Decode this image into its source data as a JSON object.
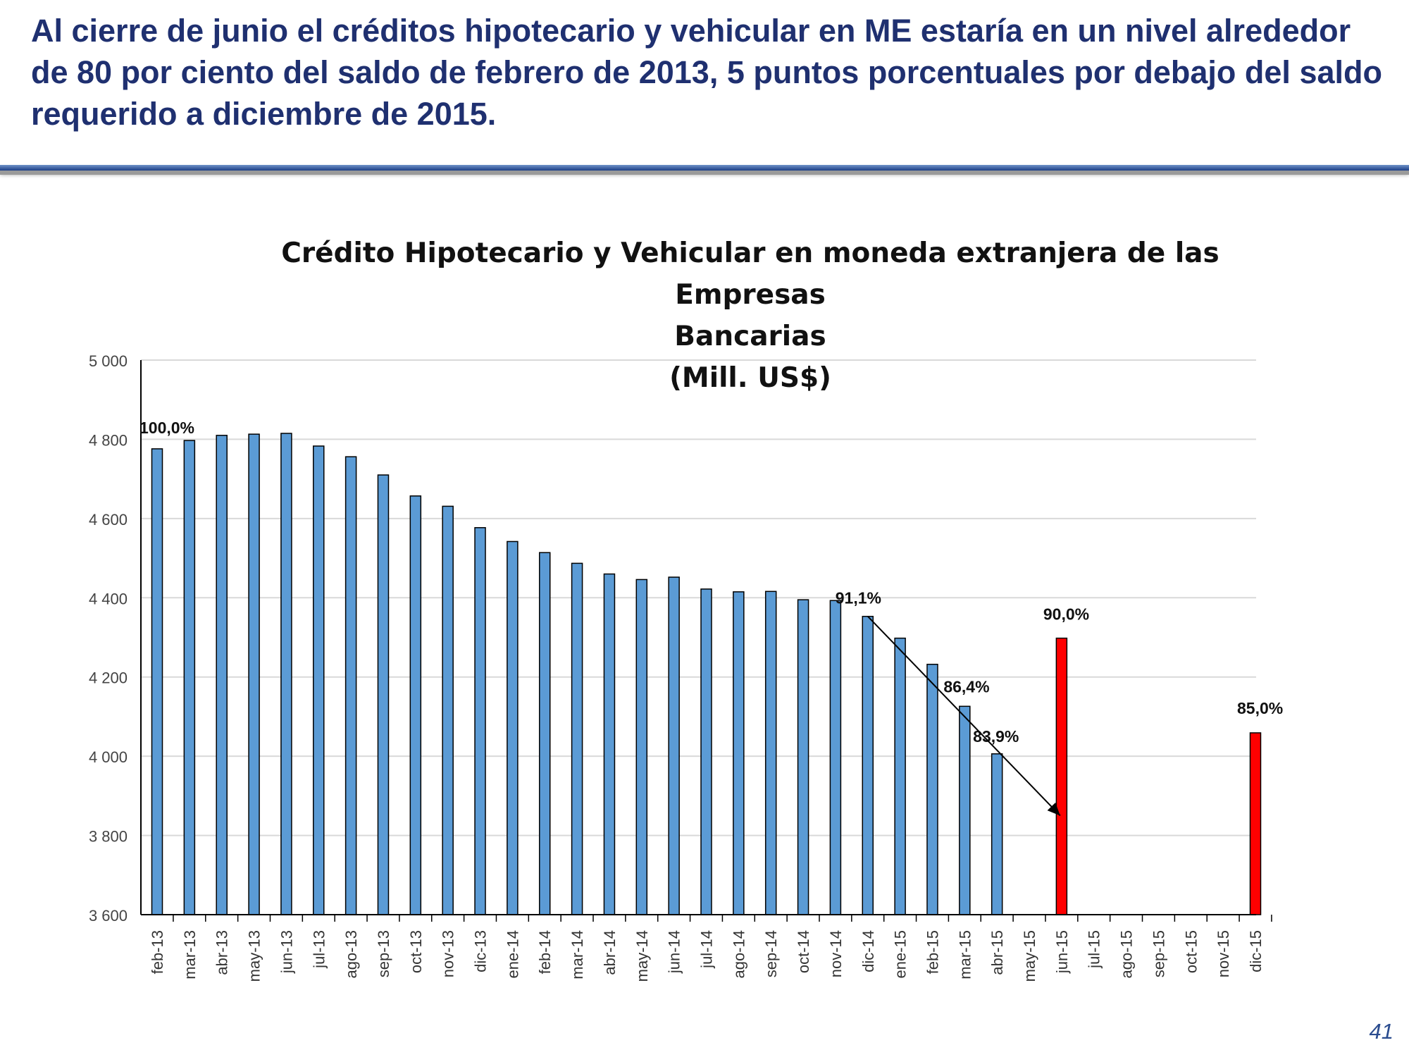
{
  "slide": {
    "heading": "Al cierre de junio el créditos hipotecario y vehicular en ME estaría en un nivel alrededor de 80 por ciento del saldo de febrero de 2013, 5 puntos porcentuales por debajo del saldo requerido a diciembre de 2015.",
    "page_number": "41"
  },
  "colors": {
    "heading": "#1f3070",
    "bar_actual": "#5b9bd5",
    "bar_target": "#ff0000",
    "grid": "#d9d9d9"
  },
  "chart_data": {
    "type": "bar",
    "title_lines": [
      "Crédito Hipotecario y Vehicular en moneda extranjera de las Empresas",
      "Bancarias",
      "(Mill. US$)"
    ],
    "ylim": [
      3600,
      5000
    ],
    "yticks": [
      3600,
      3800,
      4000,
      4200,
      4400,
      4600,
      4800,
      5000
    ],
    "ytick_labels": [
      "3 600",
      "3 800",
      "4 000",
      "4 200",
      "4 400",
      "4 600",
      "4 800",
      "5 000"
    ],
    "grid": true,
    "categories": [
      "feb-13",
      "mar-13",
      "abr-13",
      "may-13",
      "jun-13",
      "jul-13",
      "ago-13",
      "sep-13",
      "oct-13",
      "nov-13",
      "dic-13",
      "ene-14",
      "feb-14",
      "mar-14",
      "abr-14",
      "may-14",
      "jun-14",
      "jul-14",
      "ago-14",
      "sep-14",
      "oct-14",
      "nov-14",
      "dic-14",
      "ene-15",
      "feb-15",
      "mar-15",
      "abr-15",
      "may-15",
      "jun-15",
      "jul-15",
      "ago-15",
      "sep-15",
      "oct-15",
      "nov-15",
      "dic-15"
    ],
    "series": [
      {
        "kind": "actual",
        "values": [
          4776,
          4797,
          4810,
          4813,
          4815,
          4783,
          4756,
          4710,
          4657,
          4631,
          4577,
          4542,
          4514,
          4487,
          4460,
          4446,
          4452,
          4422,
          4415,
          4416,
          4395,
          4393,
          4353,
          4298,
          4232,
          4126,
          4006,
          null,
          null,
          null,
          null,
          null,
          null,
          null,
          null
        ]
      },
      {
        "kind": "target",
        "values": [
          null,
          null,
          null,
          null,
          null,
          null,
          null,
          null,
          null,
          null,
          null,
          null,
          null,
          null,
          null,
          null,
          null,
          null,
          null,
          null,
          null,
          null,
          null,
          null,
          null,
          null,
          null,
          null,
          4298,
          null,
          null,
          null,
          null,
          null,
          4059
        ]
      }
    ],
    "annotations": [
      {
        "category": "feb-13",
        "text": "100,0%"
      },
      {
        "category": "dic-14",
        "text": "91,1%"
      },
      {
        "category": "mar-15",
        "text": "86,4%"
      },
      {
        "category": "abr-15",
        "text": "83,9%"
      },
      {
        "category": "jun-15",
        "text": "90,0%"
      },
      {
        "category": "dic-15",
        "text": "85,0%"
      }
    ],
    "trend_arrow": {
      "from": {
        "category": "dic-14",
        "value": 4353
      },
      "to": {
        "category": "jun-15",
        "value": 3850
      }
    }
  }
}
